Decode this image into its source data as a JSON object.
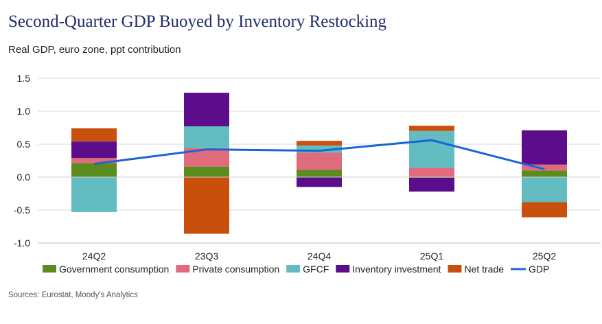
{
  "title": "Second-Quarter GDP Buoyed by Inventory Restocking",
  "subtitle": "Real GDP, euro zone, ppt contribution",
  "source": "Sources: Eurostat, Moody's Analytics",
  "chart_data": {
    "type": "bar",
    "stacked": true,
    "categories": [
      "24Q2",
      "23Q3",
      "24Q4",
      "25Q1",
      "25Q2"
    ],
    "ylim": [
      -1.0,
      1.5
    ],
    "yticks": [
      1.5,
      1.0,
      0.5,
      0.0,
      -0.5,
      -1.0
    ],
    "ytick_labels": [
      "1.5",
      "1.0",
      "0.5",
      "0.0",
      "-0.5",
      "-1.0"
    ],
    "grid": true,
    "legend_position": "bottom",
    "series": [
      {
        "name": "Government consumption",
        "color": "#5b8c1e",
        "values": [
          0.21,
          0.16,
          0.11,
          -0.01,
          0.1
        ]
      },
      {
        "name": "Private consumption",
        "color": "#e06b7d",
        "values": [
          0.08,
          0.28,
          0.26,
          0.14,
          0.09
        ]
      },
      {
        "name": "GFCF",
        "color": "#63bcc0",
        "values": [
          -0.53,
          0.33,
          0.11,
          0.56,
          -0.38
        ]
      },
      {
        "name": "Inventory investment",
        "color": "#5c0d8c",
        "values": [
          0.25,
          0.51,
          -0.15,
          -0.21,
          0.52
        ]
      },
      {
        "name": "Net trade",
        "color": "#c9500c",
        "values": [
          0.2,
          -0.86,
          0.07,
          0.08,
          -0.23
        ]
      }
    ],
    "line_series": {
      "name": "GDP",
      "color": "#1b63d8",
      "values": [
        0.2,
        0.42,
        0.4,
        0.56,
        0.12
      ]
    }
  }
}
